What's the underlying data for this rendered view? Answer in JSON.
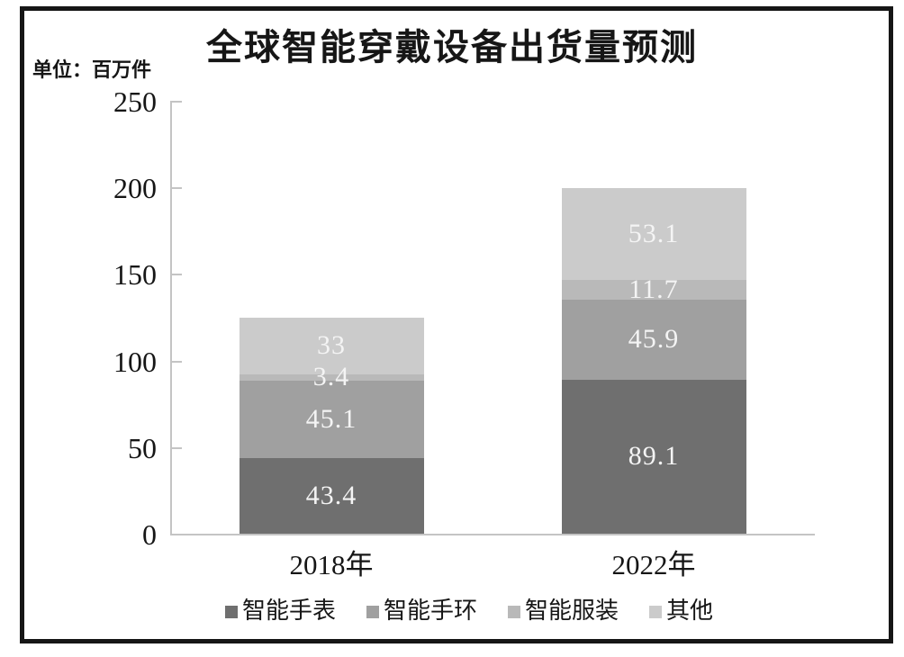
{
  "title": "全球智能穿戴设备出货量预测",
  "unit_label": "单位：百万件",
  "chart_data": {
    "type": "bar",
    "stacked": true,
    "title": "全球智能穿戴设备出货量预测",
    "unit": "百万件",
    "categories": [
      "2018年",
      "2022年"
    ],
    "series": [
      {
        "name": "智能手表",
        "values": [
          43.4,
          89.1
        ],
        "color": "#6f6f6f"
      },
      {
        "name": "智能手环",
        "values": [
          45.1,
          45.9
        ],
        "color": "#a0a0a0"
      },
      {
        "name": "智能服装",
        "values": [
          3.4,
          11.7
        ],
        "color": "#b9b9b9"
      },
      {
        "name": "其他",
        "values": [
          33,
          53.1
        ],
        "color": "#cbcbcb"
      }
    ],
    "totals": [
      124.9,
      199.8
    ],
    "ylim": [
      0,
      250
    ],
    "yticks": [
      0,
      50,
      100,
      150,
      200,
      250
    ],
    "grid": false,
    "legend_position": "bottom",
    "value_label_color": "#f4f4f4",
    "axis_color": "#c4c4c4"
  }
}
